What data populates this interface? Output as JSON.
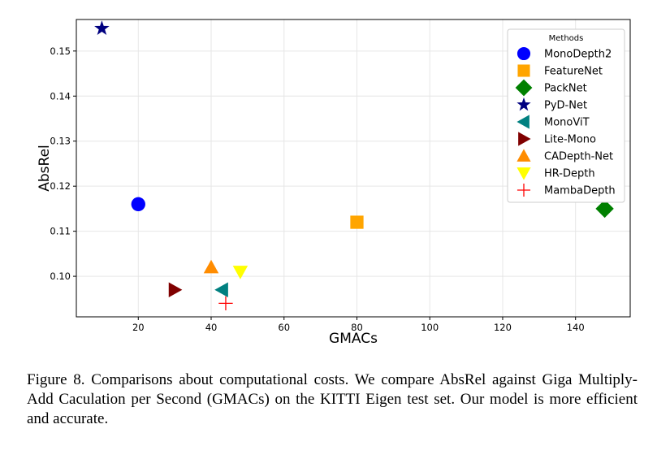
{
  "chart_data": {
    "type": "scatter",
    "title": "",
    "xlabel": "GMACs",
    "ylabel": "AbsRel",
    "xlim": [
      3,
      155
    ],
    "ylim": [
      0.091,
      0.157
    ],
    "xticks": [
      20,
      40,
      60,
      80,
      100,
      120,
      140
    ],
    "yticks": [
      0.1,
      0.11,
      0.12,
      0.13,
      0.14,
      0.15
    ],
    "xtick_labels": [
      "20",
      "40",
      "60",
      "80",
      "100",
      "120",
      "140"
    ],
    "ytick_labels": [
      "0.10",
      "0.11",
      "0.12",
      "0.13",
      "0.14",
      "0.15"
    ],
    "grid": true,
    "legend": {
      "title": "Methods",
      "placement": "top-right"
    },
    "series": [
      {
        "name": "MonoDepth2",
        "marker": "circle",
        "color": "#0000ff",
        "x": 20,
        "y": 0.116
      },
      {
        "name": "FeatureNet",
        "marker": "square",
        "color": "#ffa500",
        "x": 80,
        "y": 0.112
      },
      {
        "name": "PackNet",
        "marker": "diamond",
        "color": "#008000",
        "x": 148,
        "y": 0.115
      },
      {
        "name": "PyD-Net",
        "marker": "star",
        "color": "#000080",
        "x": 10,
        "y": 0.155
      },
      {
        "name": "MonoViT",
        "marker": "triangle-left",
        "color": "#008080",
        "x": 43,
        "y": 0.097
      },
      {
        "name": "Lite-Mono",
        "marker": "triangle-right",
        "color": "#800000",
        "x": 30,
        "y": 0.097
      },
      {
        "name": "CADepth-Net",
        "marker": "triangle-up",
        "color": "#ff8c00",
        "x": 40,
        "y": 0.102
      },
      {
        "name": "HR-Depth",
        "marker": "triangle-down",
        "color": "#ffff00",
        "x": 48,
        "y": 0.101
      },
      {
        "name": "MambaDepth",
        "marker": "plus",
        "color": "#ff0000",
        "x": 44,
        "y": 0.094
      }
    ]
  },
  "caption": "Figure 8.  Comparisons about computational costs. We compare AbsRel against Giga Multiply-Add Caculation per Second (GMACs) on the KITTI Eigen test set. Our model is more efficient and accurate."
}
